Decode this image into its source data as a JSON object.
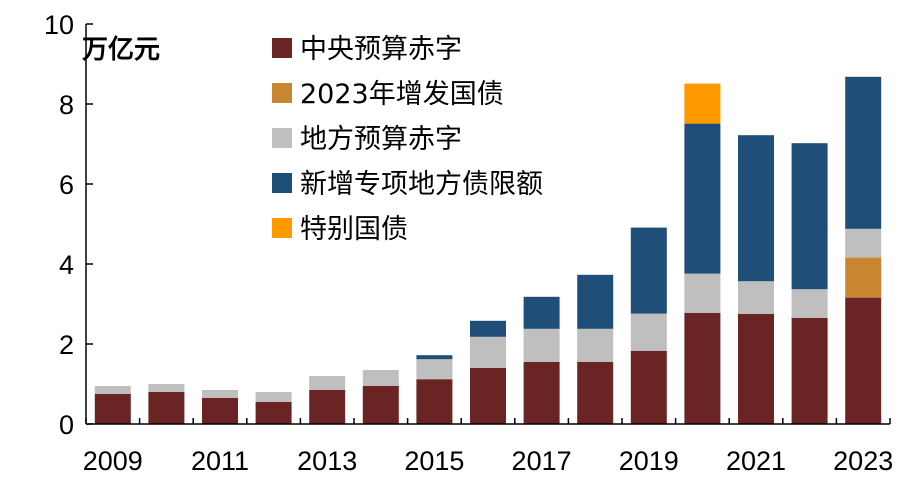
{
  "chart_data": {
    "type": "bar",
    "stacked": true,
    "unit": "万亿元",
    "categories": [
      "2009",
      "2010",
      "2011",
      "2012",
      "2013",
      "2014",
      "2015",
      "2016",
      "2017",
      "2018",
      "2019",
      "2020",
      "2021",
      "2022",
      "2023"
    ],
    "x_tick_labels": [
      "2009",
      "2011",
      "2013",
      "2015",
      "2017",
      "2019",
      "2021",
      "2023"
    ],
    "ylim": [
      0,
      10
    ],
    "y_ticks": [
      "0",
      "2",
      "4",
      "6",
      "8",
      "10"
    ],
    "legend_position": "top-left",
    "series": [
      {
        "name": "中央预算赤字",
        "color": "#6b2424",
        "values": [
          0.75,
          0.8,
          0.65,
          0.55,
          0.85,
          0.95,
          1.12,
          1.4,
          1.55,
          1.55,
          1.83,
          2.78,
          2.75,
          2.65,
          3.16
        ]
      },
      {
        "name": "2023年增发国债",
        "color": "#c98631",
        "values": [
          0,
          0,
          0,
          0,
          0,
          0,
          0,
          0,
          0,
          0,
          0,
          0,
          0,
          0,
          1.0
        ]
      },
      {
        "name": "地方预算赤字",
        "color": "#bfbfbf",
        "values": [
          0.2,
          0.2,
          0.2,
          0.25,
          0.35,
          0.4,
          0.5,
          0.78,
          0.83,
          0.83,
          0.93,
          0.98,
          0.82,
          0.72,
          0.72
        ]
      },
      {
        "name": "新增专项地方债限额",
        "color": "#1f4e79",
        "values": [
          0,
          0,
          0,
          0,
          0,
          0,
          0.1,
          0.4,
          0.8,
          1.35,
          2.15,
          3.75,
          3.65,
          3.65,
          3.8
        ]
      },
      {
        "name": "特别国债",
        "color": "#ff9900",
        "values": [
          0,
          0,
          0,
          0,
          0,
          0,
          0,
          0,
          0,
          0,
          0,
          1.0,
          0,
          0,
          0
        ]
      }
    ]
  }
}
